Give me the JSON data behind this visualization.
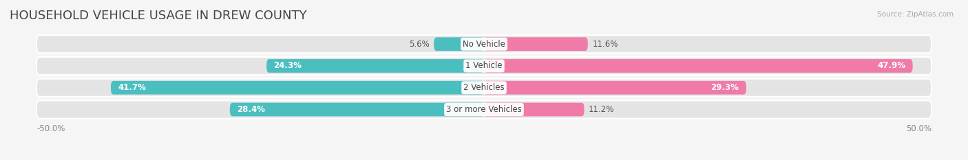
{
  "title": "HOUSEHOLD VEHICLE USAGE IN DREW COUNTY",
  "source": "Source: ZipAtlas.com",
  "categories": [
    "No Vehicle",
    "1 Vehicle",
    "2 Vehicles",
    "3 or more Vehicles"
  ],
  "owner_values": [
    5.6,
    24.3,
    41.7,
    28.4
  ],
  "renter_values": [
    11.6,
    47.9,
    29.3,
    11.2
  ],
  "owner_color": "#4bbfbf",
  "renter_color": "#f07ba8",
  "axis_min": -50.0,
  "axis_max": 50.0,
  "bar_height": 0.62,
  "bg_color": "#f5f5f5",
  "bar_bg_color": "#e4e4e4",
  "title_fontsize": 13,
  "label_fontsize": 8.5,
  "axis_fontsize": 8.5,
  "source_fontsize": 7.5
}
